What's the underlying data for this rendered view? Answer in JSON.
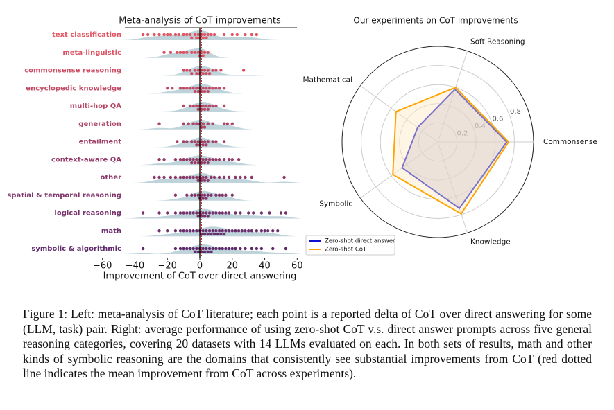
{
  "chart_data": [
    {
      "type": "swarm",
      "title": "Meta-analysis of CoT improvements",
      "xlabel": "Improvement of CoT over direct answering",
      "categories": [
        "text classification",
        "meta-linguistic",
        "commonsense reasoning",
        "encyclopedic knowledge",
        "multi-hop QA",
        "generation",
        "entailment",
        "context-aware QA",
        "other",
        "spatial & temporal reasoning",
        "logical reasoning",
        "math",
        "symbolic & algorithmic"
      ],
      "colors": [
        "#e25561",
        "#dc5363",
        "#d04e64",
        "#c44a66",
        "#b84766",
        "#ac4467",
        "#a14068",
        "#963c69",
        "#8b3969",
        "#80356a",
        "#75316b",
        "#6a2d6b",
        "#5f2a6b"
      ],
      "values": [
        [
          -35,
          -32,
          -28,
          -25,
          -22,
          -20,
          -18,
          -15,
          -13,
          -10,
          -8,
          -6,
          -5,
          -3,
          -2,
          -1,
          0,
          1,
          2,
          3,
          4,
          5,
          7,
          9,
          15,
          20,
          23,
          28,
          32,
          35
        ],
        [
          -22,
          -18,
          -14,
          -12,
          -10,
          -8,
          -5,
          -3,
          -1,
          0,
          1,
          2,
          3,
          5
        ],
        [
          -10,
          -8,
          -6,
          -5,
          -3,
          -2,
          -1,
          0,
          1,
          2,
          3,
          4,
          5,
          6,
          8,
          10,
          13,
          27
        ],
        [
          -20,
          -17,
          -12,
          -10,
          -8,
          -6,
          -4,
          -3,
          -2,
          -1,
          0,
          1,
          2,
          3,
          4,
          5,
          6,
          8,
          10,
          12,
          15
        ],
        [
          -10,
          -6,
          -4,
          -2,
          -1,
          0,
          1,
          2,
          3,
          4,
          5,
          6,
          8,
          10,
          15
        ],
        [
          -25,
          -10,
          -7,
          -4,
          -2,
          0,
          1,
          2,
          3,
          5,
          8,
          15,
          17,
          20
        ],
        [
          -14,
          -10,
          -8,
          -5,
          -3,
          -2,
          -1,
          0,
          1,
          2,
          3,
          4,
          5,
          8,
          10,
          15
        ],
        [
          -25,
          -22,
          -15,
          -12,
          -10,
          -8,
          -6,
          -5,
          -4,
          -3,
          -2,
          -1,
          0,
          1,
          2,
          3,
          4,
          5,
          6,
          8,
          10,
          12,
          15,
          18,
          20,
          24
        ],
        [
          -28,
          -25,
          -22,
          -18,
          -15,
          -12,
          -10,
          -8,
          -6,
          -4,
          -2,
          -1,
          0,
          1,
          2,
          3,
          4,
          5,
          7,
          9,
          12,
          15,
          18,
          22,
          25,
          28,
          32,
          52
        ],
        [
          -15,
          -8,
          -5,
          -3,
          -1,
          0,
          1,
          2,
          3,
          4,
          5,
          7,
          10,
          12,
          14,
          16,
          20
        ],
        [
          -35,
          -25,
          -20,
          -15,
          -12,
          -10,
          -8,
          -6,
          -4,
          -2,
          -1,
          0,
          1,
          2,
          3,
          4,
          5,
          6,
          8,
          10,
          12,
          14,
          16,
          18,
          22,
          25,
          30,
          33,
          38,
          43,
          50,
          53
        ],
        [
          -25,
          -20,
          -15,
          -12,
          -10,
          -8,
          -6,
          -4,
          -2,
          0,
          1,
          2,
          3,
          4,
          5,
          6,
          7,
          8,
          9,
          10,
          11,
          12,
          13,
          14,
          15,
          16,
          18,
          20,
          22,
          24,
          26,
          28,
          30,
          32,
          35,
          38,
          40,
          42,
          45,
          48
        ],
        [
          -35,
          -15,
          -12,
          -10,
          -8,
          -6,
          -4,
          -3,
          -2,
          -1,
          0,
          1,
          2,
          3,
          4,
          5,
          6,
          7,
          8,
          10,
          12,
          14,
          16,
          18,
          20,
          22,
          25,
          28,
          32,
          35,
          38,
          45,
          53
        ]
      ],
      "density_color": "#a9c4cf",
      "mean_line": 1,
      "mean_line_color": "#d62728",
      "xlim": [
        -62,
        62
      ],
      "xticks": [
        {
          "value": -60,
          "label": "−60"
        },
        {
          "value": -40,
          "label": "−40"
        },
        {
          "value": -20,
          "label": "−20"
        },
        0,
        20,
        40,
        60
      ]
    },
    {
      "type": "radar",
      "title": "Our experiments on CoT improvements",
      "categories": [
        "Commonsense",
        "Soft Reasoning",
        "Mathematical",
        "Symbolic",
        "Knowledge"
      ],
      "series": [
        {
          "name": "Zero-shot direct answer",
          "color": "#1010d0",
          "fill": "#b9b2d8",
          "values": [
            0.72,
            0.58,
            0.26,
            0.46,
            0.73
          ]
        },
        {
          "name": "Zero-shot CoT",
          "color": "#ffa500",
          "fill": "#fde9c4",
          "values": [
            0.74,
            0.6,
            0.54,
            0.58,
            0.79
          ]
        }
      ],
      "rlim": [
        0,
        1
      ],
      "rticks": [
        0.2,
        0.4,
        0.6,
        0.8
      ],
      "legend": "lower left"
    }
  ],
  "caption": "Figure 1: Left: meta-analysis of CoT literature; each point is a reported delta of CoT over direct answering for some (LLM, task) pair. Right: average performance of using zero-shot CoT v.s. direct answer prompts across five general reasoning categories, covering 20 datasets with 14 LLMs evaluated on each. In both sets of results, math and other kinds of symbolic reasoning are the domains that consistently see substantial improvements from CoT (red dotted line indicates the mean improvement from CoT across experiments)."
}
